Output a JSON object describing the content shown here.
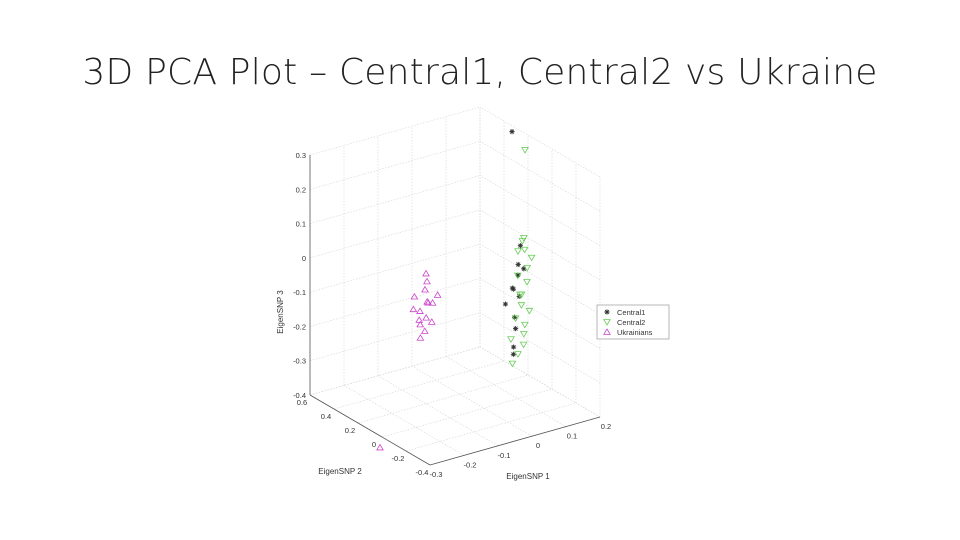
{
  "slide": {
    "title": "3D PCA Plot – Central1, Central2 vs Ukraine"
  },
  "chart_data": {
    "type": "scatter",
    "projection": "3d",
    "xlabel": "EigenSNP 1",
    "ylabel": "EigenSNP 2",
    "zlabel": "EigenSNP 3",
    "xlim": [
      -0.3,
      0.2
    ],
    "ylim": [
      -0.4,
      0.6
    ],
    "zlim": [
      -0.4,
      0.3
    ],
    "x_ticks": [
      "-0.3",
      "-0.2",
      "-0.1",
      "0",
      "0.1",
      "0.2"
    ],
    "y_ticks": [
      "-0.4",
      "-0.2",
      "0",
      "0.2",
      "0.4",
      "0.6"
    ],
    "z_ticks": [
      "-0.4",
      "-0.3",
      "-0.2",
      "-0.1",
      "0",
      "0.1",
      "0.2",
      "0.3"
    ],
    "grid": true,
    "legend_position": "right",
    "series": [
      {
        "name": "Central1",
        "marker": "star",
        "color": "#333333",
        "points": [
          [
            0.04,
            -0.12,
            0.42
          ],
          [
            0.1,
            -0.02,
            0.05
          ],
          [
            0.09,
            -0.03,
            0.0
          ],
          [
            0.11,
            -0.02,
            -0.02
          ],
          [
            0.1,
            0.0,
            -0.04
          ],
          [
            0.08,
            -0.01,
            -0.07
          ],
          [
            0.09,
            0.01,
            -0.08
          ],
          [
            0.1,
            -0.01,
            -0.1
          ],
          [
            0.07,
            0.02,
            -0.12
          ],
          [
            0.09,
            0.0,
            -0.16
          ],
          [
            0.1,
            0.02,
            -0.2
          ],
          [
            0.08,
            -0.02,
            -0.24
          ],
          [
            0.09,
            0.01,
            -0.27
          ]
        ]
      },
      {
        "name": "Central2",
        "marker": "triangle-down",
        "color": "#66cc55",
        "points": [
          [
            0.05,
            -0.2,
            0.38
          ],
          [
            0.11,
            -0.02,
            0.07
          ],
          [
            0.12,
            0.02,
            0.05
          ],
          [
            0.1,
            0.0,
            0.03
          ],
          [
            0.13,
            0.03,
            0.02
          ],
          [
            0.14,
            0.0,
            0.0
          ],
          [
            0.12,
            -0.02,
            -0.02
          ],
          [
            0.11,
            0.03,
            -0.05
          ],
          [
            0.13,
            0.01,
            -0.07
          ],
          [
            0.1,
            -0.03,
            -0.09
          ],
          [
            0.12,
            0.04,
            -0.11
          ],
          [
            0.11,
            0.0,
            -0.13
          ],
          [
            0.13,
            -0.01,
            -0.15
          ],
          [
            0.1,
            0.02,
            -0.17
          ],
          [
            0.12,
            0.0,
            -0.19
          ],
          [
            0.11,
            -0.02,
            -0.21
          ],
          [
            0.09,
            0.03,
            -0.23
          ],
          [
            0.12,
            0.01,
            -0.25
          ],
          [
            0.1,
            0.0,
            -0.27
          ],
          [
            0.08,
            -0.01,
            -0.29
          ]
        ]
      },
      {
        "name": "Ukrainians",
        "marker": "triangle-up",
        "color": "#cc44cc",
        "points": [
          [
            -0.1,
            0.2,
            -0.02
          ],
          [
            -0.09,
            0.22,
            -0.05
          ],
          [
            -0.11,
            0.18,
            -0.06
          ],
          [
            -0.08,
            0.16,
            -0.08
          ],
          [
            -0.12,
            0.24,
            -0.09
          ],
          [
            -0.1,
            0.19,
            -0.1
          ],
          [
            -0.09,
            0.21,
            -0.11
          ],
          [
            -0.13,
            0.22,
            -0.12
          ],
          [
            -0.07,
            0.23,
            -0.12
          ],
          [
            -0.11,
            0.17,
            -0.14
          ],
          [
            -0.1,
            0.25,
            -0.14
          ],
          [
            -0.12,
            0.2,
            -0.15
          ],
          [
            -0.09,
            0.18,
            -0.16
          ],
          [
            -0.11,
            0.22,
            -0.17
          ],
          [
            -0.1,
            0.21,
            -0.19
          ],
          [
            -0.12,
            0.19,
            -0.2
          ],
          [
            -0.2,
            0.3,
            -0.52
          ]
        ]
      }
    ]
  }
}
